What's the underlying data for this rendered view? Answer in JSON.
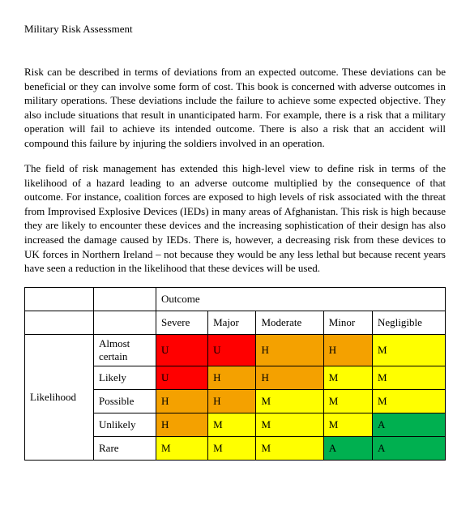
{
  "title": "Military Risk Assessment",
  "paragraphs": {
    "p1": "Risk can be described in terms of deviations from an expected outcome.   These deviations can be beneficial or they can involve some form of cost.  This book is concerned with adverse outcomes in military operations.  These deviations include the failure to achieve some expected objective.  They also include situations that result in unanticipated harm.  For example, there is a risk that a military operation will fail to achieve its intended outcome.  There is also a risk that an accident will compound this failure by injuring the soldiers involved in an operation.",
    "p2": "The field of risk management has extended this high-level view to define risk in terms of the likelihood of a hazard leading to an adverse outcome multiplied by the consequence of that outcome.  For instance, coalition forces are exposed to high levels of risk associated with the threat from Improvised Explosive Devices (IEDs) in many areas of Afghanistan.  This risk is high because they are likely to encounter these devices and the increasing sophistication of their design has also increased the damage caused by IEDs.  There is, however, a decreasing risk from these devices to UK forces in Northern Ireland – not because they would be any less lethal but because recent years have seen a reduction in the likelihood that these devices will be used."
  },
  "matrix": {
    "outcome_header": "Outcome",
    "likelihood_header": "Likelihood",
    "columns": [
      "Severe",
      "Major",
      "Moderate",
      "Minor",
      "Negligible"
    ],
    "rows": [
      "Almost certain",
      "Likely",
      "Possible",
      "Unlikely",
      "Rare"
    ],
    "codes": {
      "U": "U",
      "H": "H",
      "M": "M",
      "A": "A"
    },
    "colors": {
      "U": "#ff0000",
      "H": "#f4a100",
      "M": "#ffff00",
      "A": "#00b050",
      "blank": "#ffffff"
    },
    "cells": [
      [
        "U",
        "U",
        "H",
        "H",
        "M"
      ],
      [
        "U",
        "H",
        "H",
        "M",
        "M"
      ],
      [
        "H",
        "H",
        "M",
        "M",
        "M"
      ],
      [
        "H",
        "M",
        "M",
        "M",
        "A"
      ],
      [
        "M",
        "M",
        "M",
        "A",
        "A"
      ]
    ]
  }
}
